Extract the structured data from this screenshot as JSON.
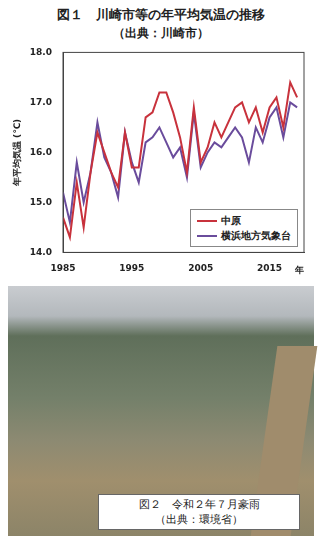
{
  "chart_data": {
    "type": "line",
    "title": "図１　川崎市等の年平均気温の推移",
    "subtitle": "（出典：川崎市）",
    "x_label": "年",
    "y_label": "年平均気温 (℃)",
    "x": [
      1985,
      1986,
      1987,
      1988,
      1989,
      1990,
      1991,
      1992,
      1993,
      1994,
      1995,
      1996,
      1997,
      1998,
      1999,
      2000,
      2001,
      2002,
      2003,
      2004,
      2005,
      2006,
      2007,
      2008,
      2009,
      2010,
      2011,
      2012,
      2013,
      2014,
      2015,
      2016,
      2017,
      2018,
      2019
    ],
    "series": [
      {
        "name": "中原",
        "color": "#c8323c",
        "values": [
          14.7,
          14.3,
          15.4,
          14.5,
          15.6,
          16.4,
          16.0,
          15.6,
          15.3,
          16.4,
          15.7,
          15.7,
          16.7,
          16.8,
          17.2,
          17.2,
          16.8,
          16.3,
          15.6,
          16.9,
          15.8,
          16.1,
          16.6,
          16.3,
          16.6,
          16.9,
          17.0,
          16.6,
          16.9,
          16.4,
          16.9,
          17.1,
          16.5,
          17.4,
          17.1
        ]
      },
      {
        "name": "横浜地方気象台",
        "color": "#6a4c9c",
        "values": [
          15.2,
          14.6,
          15.8,
          15.0,
          15.6,
          16.6,
          15.9,
          15.6,
          15.1,
          16.4,
          15.8,
          15.4,
          16.2,
          16.3,
          16.5,
          16.2,
          15.9,
          16.1,
          15.5,
          16.8,
          15.7,
          16.0,
          16.2,
          16.1,
          16.3,
          16.5,
          16.3,
          15.8,
          16.5,
          16.2,
          16.7,
          16.9,
          16.3,
          17.0,
          16.9
        ]
      }
    ],
    "xlim": [
      1985,
      2020
    ],
    "xticks": [
      1985,
      1995,
      2005,
      2015
    ],
    "ylim": [
      14,
      18
    ],
    "yticks": [
      {
        "value": 14,
        "label": "14.0"
      },
      {
        "value": 15,
        "label": "15.0"
      },
      {
        "value": 16,
        "label": "16.0"
      },
      {
        "value": 17,
        "label": "17.0"
      },
      {
        "value": 18,
        "label": "18.0"
      }
    ],
    "grid": false,
    "legend": "lower right"
  },
  "photo": {
    "caption": "図２　令和２年７月豪雨",
    "source": "（出典：環境省）"
  }
}
